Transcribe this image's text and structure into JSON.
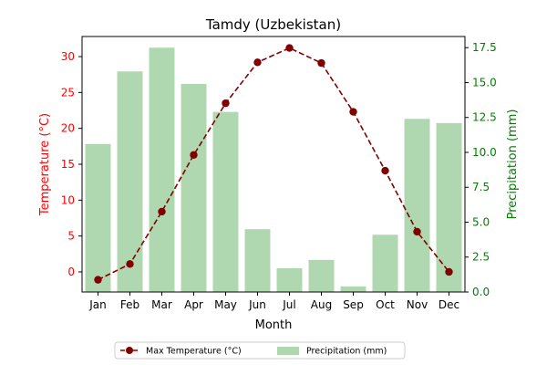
{
  "chart_data": {
    "type": "bar+line",
    "title": "Tamdy (Uzbekistan)",
    "xlabel": "Month",
    "categories": [
      "Jan",
      "Feb",
      "Mar",
      "Apr",
      "May",
      "Jun",
      "Jul",
      "Aug",
      "Sep",
      "Oct",
      "Nov",
      "Dec"
    ],
    "y_left": {
      "label": "Temperature (°C)",
      "lim": [
        -2.8,
        32.8
      ],
      "ticks": [
        0,
        5,
        10,
        15,
        20,
        25,
        30
      ],
      "color": "#ff0000"
    },
    "y_right": {
      "label": "Precipitation (mm)",
      "lim": [
        0,
        18.3
      ],
      "ticks": [
        0.0,
        2.5,
        5.0,
        7.5,
        10.0,
        12.5,
        15.0,
        17.5
      ],
      "tick_labels": [
        "0.0",
        "2.5",
        "5.0",
        "7.5",
        "10.0",
        "12.5",
        "15.0",
        "17.5"
      ],
      "color": "#008000"
    },
    "series": [
      {
        "name": "Max Temperature (°C)",
        "kind": "line",
        "axis": "left",
        "color": "#800000",
        "linestyle": "dashed",
        "marker": "circle",
        "values": [
          -1.1,
          1.1,
          8.4,
          16.3,
          23.5,
          29.2,
          31.2,
          29.1,
          22.3,
          14.1,
          5.6,
          0.0
        ]
      },
      {
        "name": "Precipitation (mm)",
        "kind": "bar",
        "axis": "right",
        "color": "#b0d8b0",
        "values": [
          10.6,
          15.8,
          17.5,
          14.9,
          12.9,
          4.5,
          1.7,
          2.3,
          0.4,
          4.1,
          12.4,
          12.1
        ]
      }
    ],
    "legend": {
      "placement": "bottom-center",
      "entries": [
        "Max Temperature (°C)",
        "Precipitation (mm)"
      ]
    },
    "grid": false
  }
}
